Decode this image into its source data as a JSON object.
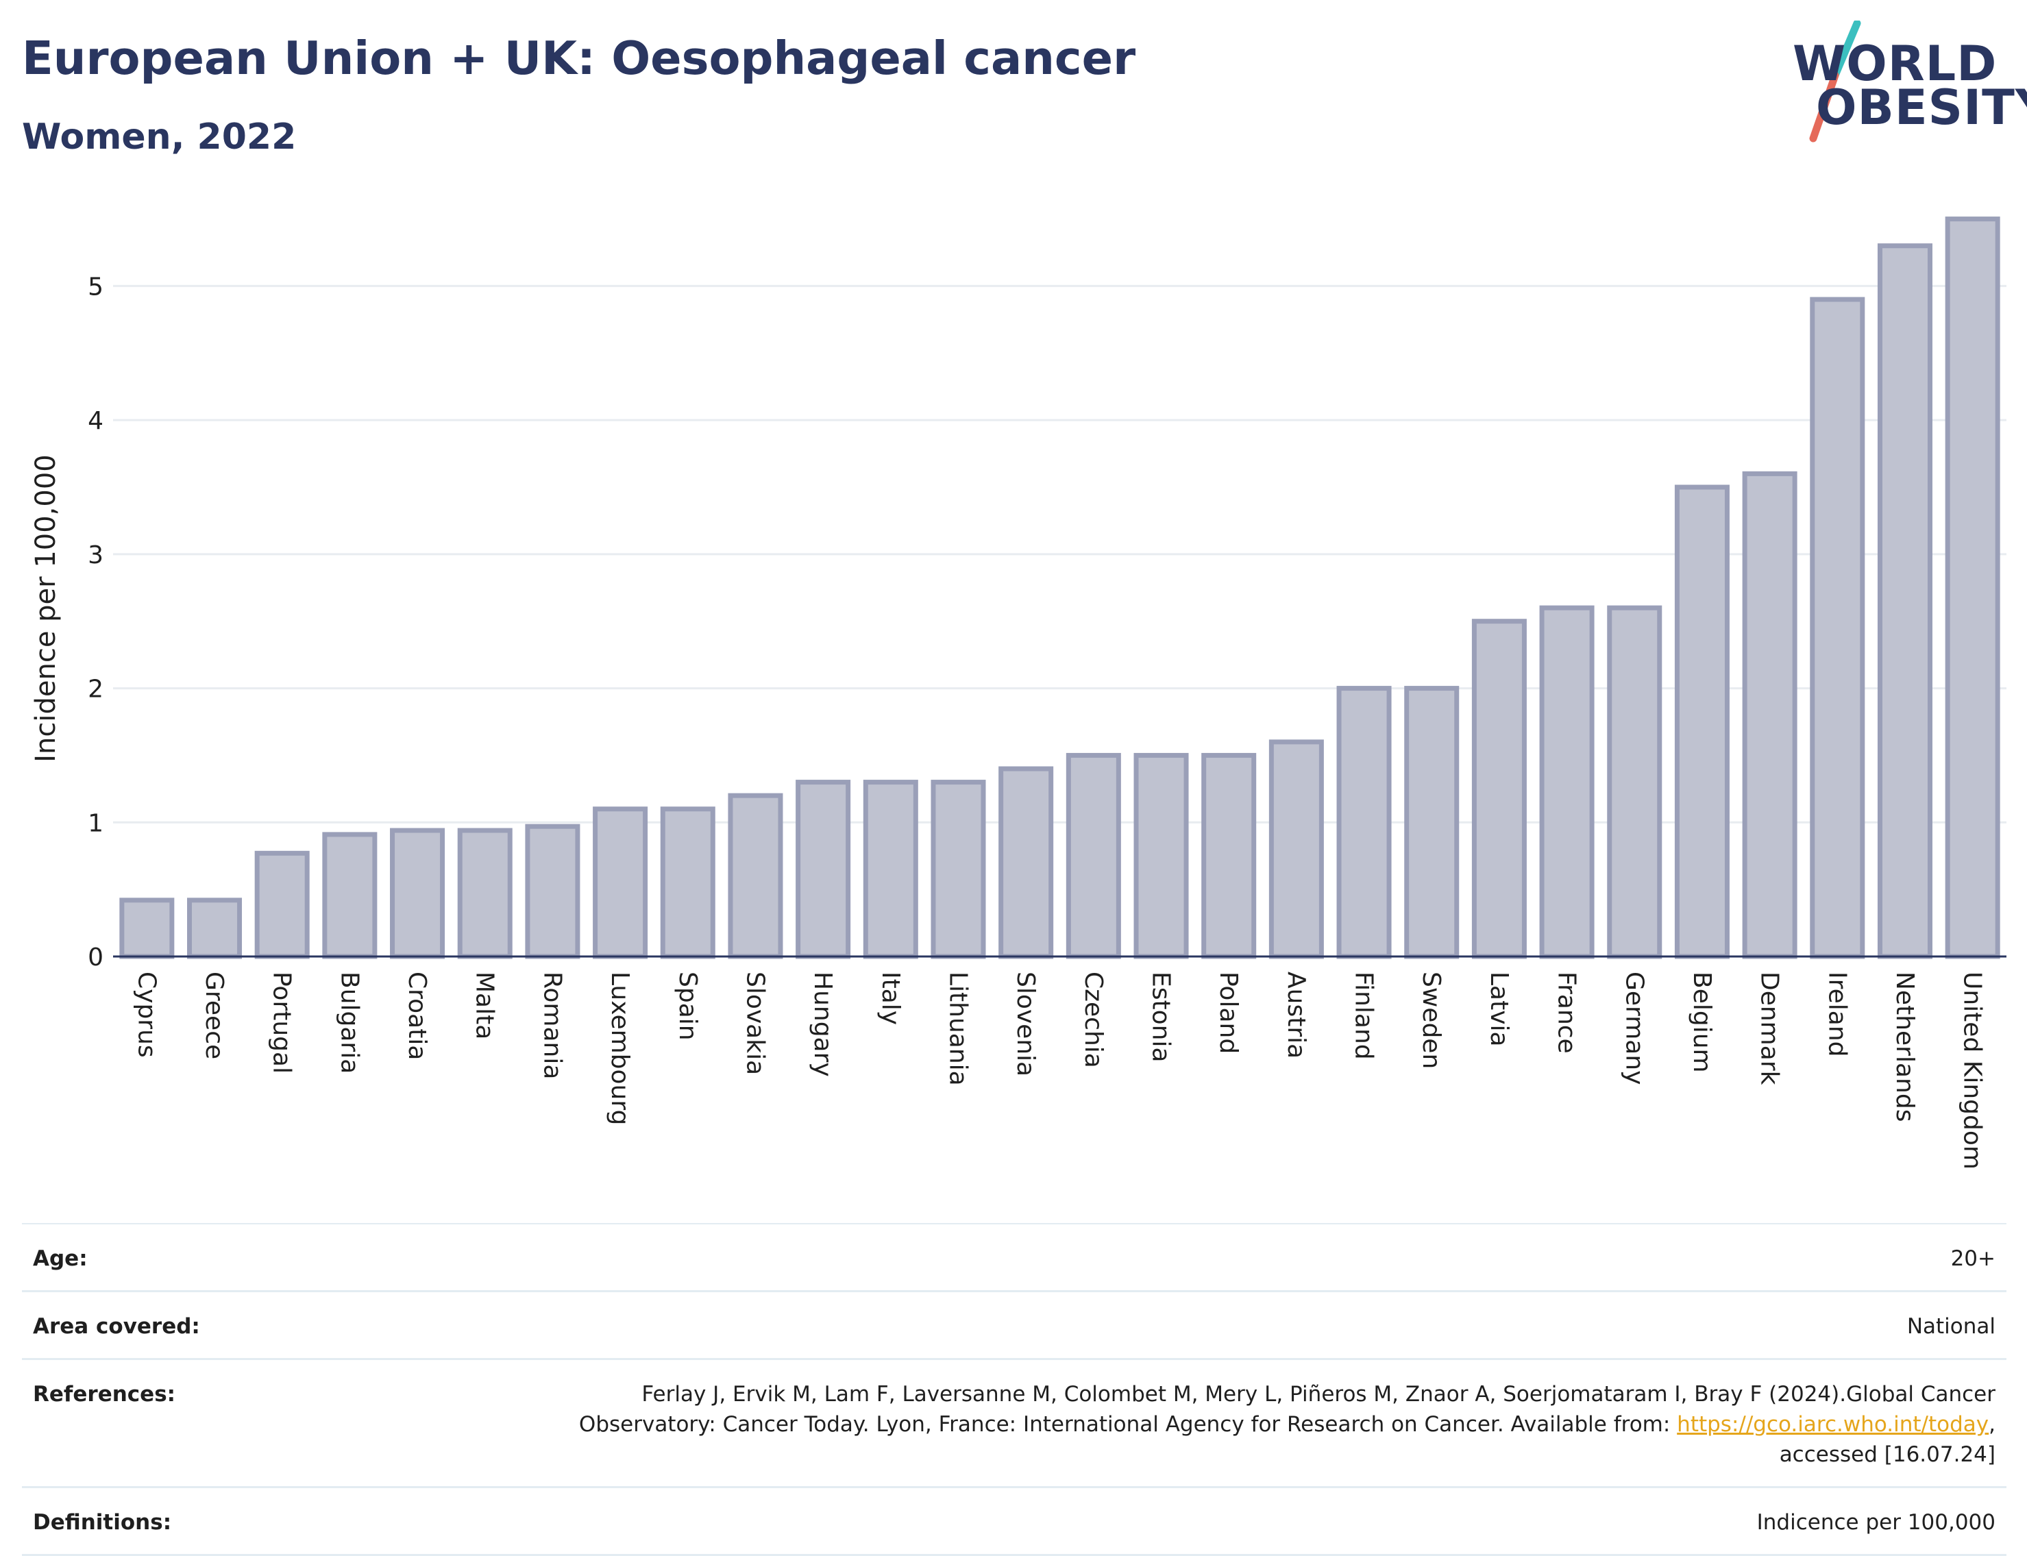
{
  "header": {
    "title": "European Union + UK: Oesophageal cancer",
    "subtitle": "Women, 2022"
  },
  "logo": {
    "line1": "WORLD",
    "line2": "OBESITY",
    "slash_colors": [
      "#3bbfbf",
      "#e56a5a"
    ],
    "text_color": "#2a3660"
  },
  "chart_data": {
    "type": "bar",
    "title": "European Union + UK: Oesophageal cancer",
    "subtitle": "Women, 2022",
    "xlabel": "",
    "ylabel": "Incidence per 100,000",
    "ylim": [
      0,
      5.6
    ],
    "yticks": [
      0,
      1,
      2,
      3,
      4,
      5
    ],
    "grid": true,
    "bar_color": "#bfc2d0",
    "bar_edge_color": "#9a9fb8",
    "categories": [
      "Cyprus",
      "Greece",
      "Portugal",
      "Bulgaria",
      "Croatia",
      "Malta",
      "Romania",
      "Luxembourg",
      "Spain",
      "Slovakia",
      "Hungary",
      "Italy",
      "Lithuania",
      "Slovenia",
      "Czechia",
      "Estonia",
      "Poland",
      "Austria",
      "Finland",
      "Sweden",
      "Latvia",
      "France",
      "Germany",
      "Belgium",
      "Denmark",
      "Ireland",
      "Netherlands",
      "United Kingdom"
    ],
    "values": [
      0.42,
      0.42,
      0.77,
      0.91,
      0.94,
      0.94,
      0.97,
      1.1,
      1.1,
      1.2,
      1.3,
      1.3,
      1.3,
      1.4,
      1.5,
      1.5,
      1.5,
      1.6,
      2.0,
      2.0,
      2.5,
      2.6,
      2.6,
      3.5,
      3.6,
      4.9,
      5.3,
      5.5
    ]
  },
  "meta": {
    "age": {
      "label": "Age:",
      "value": "20+"
    },
    "area": {
      "label": "Area covered:",
      "value": "National"
    },
    "references": {
      "label": "References:",
      "line1": "Ferlay J, Ervik M, Lam F, Laversanne M, Colombet M, Mery L, Piñeros M, Znaor A, Soerjomataram I, Bray F (2024).Global Cancer",
      "line2_prefix": "Observatory: Cancer Today. Lyon, France: International Agency for Research on Cancer. Available from: ",
      "link": "https://gco.iarc.who.int/today",
      "line2_suffix": ",",
      "line3": "accessed [16.07.24]"
    },
    "definitions": {
      "label": "Definitions:",
      "value": "Indicence per 100,000"
    }
  }
}
